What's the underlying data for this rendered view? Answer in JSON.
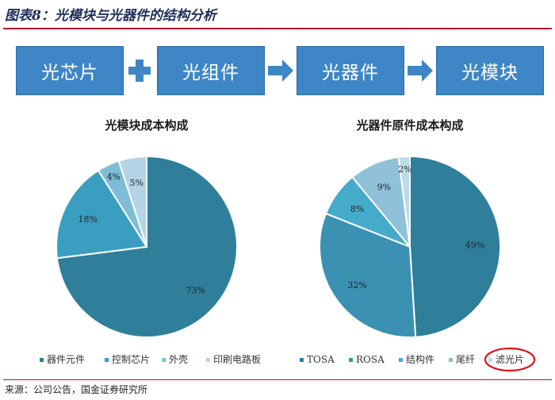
{
  "figure": {
    "title": "图表8：光模块与光器件的结构分析",
    "source": "来源：公司公告，国金证券研究所"
  },
  "flow": {
    "boxes": [
      "光芯片",
      "光组件",
      "光器件",
      "光模块"
    ],
    "connectors": [
      "plus-icon",
      "right-arrow-icon",
      "right-arrow-icon"
    ],
    "box_color": "#3e86c5"
  },
  "chart_data": [
    {
      "type": "pie",
      "title": "光模块成本构成",
      "categories": [
        "器件元件",
        "控制芯片",
        "外壳",
        "印刷电路板"
      ],
      "values": [
        73,
        18,
        4,
        5
      ],
      "labels": [
        "73%",
        "18%",
        "4%",
        "5%"
      ],
      "colors": [
        "#2f7f9b",
        "#3a9ec0",
        "#7fbcd6",
        "#b3d5e6"
      ],
      "legend_position": "bottom"
    },
    {
      "type": "pie",
      "title": "光器件原件成本构成",
      "categories": [
        "TOSA",
        "ROSA",
        "结构件",
        "尾纤",
        "滤光片"
      ],
      "values": [
        49,
        32,
        8,
        9,
        2
      ],
      "labels": [
        "49%",
        "32%",
        "8%",
        "9%",
        "2%"
      ],
      "colors": [
        "#2f7f9b",
        "#3a91b2",
        "#45abca",
        "#8fc2d9",
        "#bcdbe8"
      ],
      "legend_position": "bottom",
      "highlighted_legend_item": "滤光片",
      "highlight_color": "#e0101c"
    }
  ]
}
